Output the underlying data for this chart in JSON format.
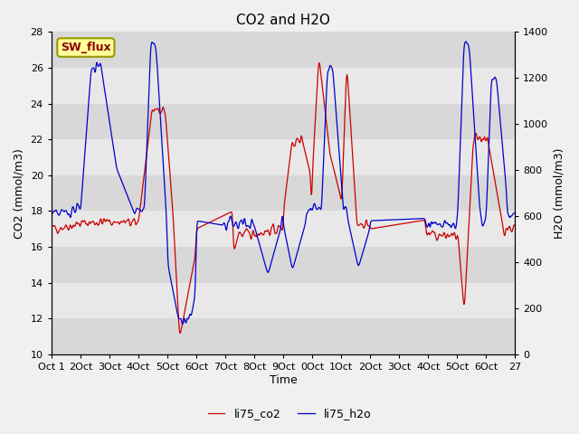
{
  "title": "CO2 and H2O",
  "xlabel": "Time",
  "ylabel_left": "CO2 (mmol/m3)",
  "ylabel_right": "H2O (mmol/m3)",
  "ylim_left": [
    10,
    28
  ],
  "ylim_right": [
    0,
    1400
  ],
  "yticks_left": [
    10,
    12,
    14,
    16,
    18,
    20,
    22,
    24,
    26,
    28
  ],
  "yticks_right": [
    0,
    200,
    400,
    600,
    800,
    1000,
    1200,
    1400
  ],
  "xtick_labels": [
    "Oct 1",
    "2Oct",
    "3Oct",
    "4Oct",
    "5Oct",
    "6Oct",
    "7Oct",
    "8Oct",
    "9Oct",
    "0Oct",
    "1Oct",
    "2Oct",
    "3Oct",
    "4Oct",
    "5Oct",
    "6Oct",
    "27"
  ],
  "color_co2": "#cc0000",
  "color_h2o": "#0000cc",
  "legend_co2": "li75_co2",
  "legend_h2o": "li75_h2o",
  "annotation_text": "SW_flux",
  "annotation_bg": "#ffff99",
  "annotation_border": "#999900",
  "background_color": "#e8e8e8",
  "panel_bg": "#f0f0f0",
  "band_colors": [
    "#d8d8d8",
    "#e8e8e8"
  ]
}
